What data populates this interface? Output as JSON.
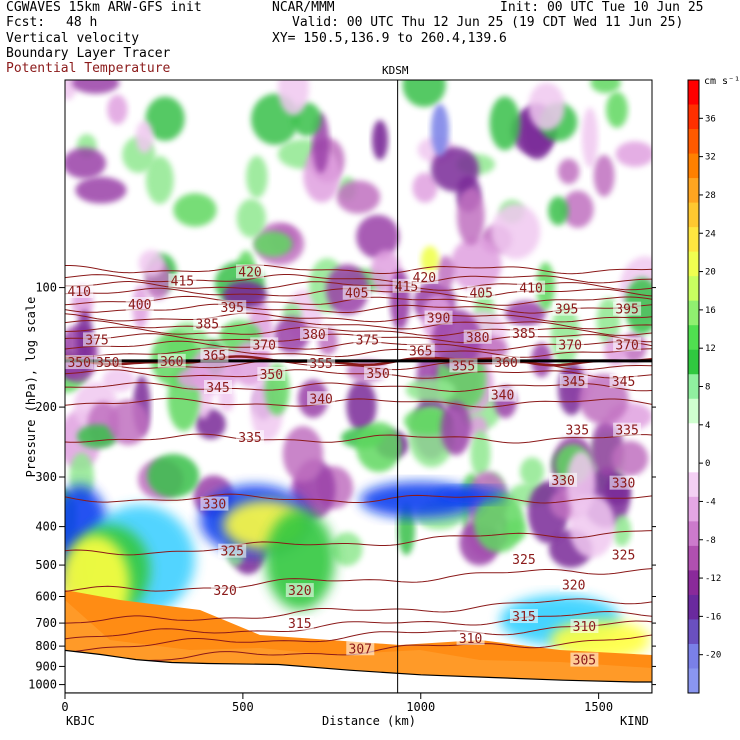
{
  "header": {
    "title_left": "CGWAVES 15km ARW-GFS init",
    "fcst_label": "Fcst:",
    "fcst_value": "48 h",
    "org": "NCAR/MMM",
    "init": "Init: 00 UTC Tue 10 Jun 25",
    "valid": "Valid: 00 UTC Thu 12 Jun 25 (19 CDT Wed 11 Jun 25)",
    "xy": "XY= 150.5,136.9 to 260.4,139.6",
    "fields": [
      "Vertical velocity",
      "Boundary Layer Tracer",
      "Potential Temperature"
    ],
    "colors": {
      "fields": [
        "#000000",
        "#000000",
        "#8b1a1a"
      ]
    }
  },
  "chart_data": {
    "type": "heatmap",
    "title": "Vertical velocity",
    "xlabel": "Distance (km)",
    "ylabel": "Pressure (hPa), log scale",
    "x_ticks": [
      0,
      500,
      1000,
      1500
    ],
    "xlim": [
      0,
      1650
    ],
    "y_ticks": [
      100,
      200,
      300,
      400,
      500,
      600,
      700,
      800,
      900,
      1000
    ],
    "ylim": [
      1050,
      30
    ],
    "y_scale": "log",
    "left_station": "KBJC",
    "right_station": "KIND",
    "mid_station": {
      "name": "KDSM",
      "distance": 935
    },
    "colorbar": {
      "unit": "cm s⁻¹",
      "labels": [
        36,
        32,
        28,
        24,
        20,
        16,
        12,
        8,
        4,
        0,
        -4,
        -8,
        -12,
        -16,
        -20
      ],
      "colors": [
        "#ff0000",
        "#ff3000",
        "#ff5a00",
        "#ff8000",
        "#ffa520",
        "#ffc830",
        "#ffe640",
        "#f0ff50",
        "#c8ff60",
        "#90f070",
        "#50e050",
        "#30c840",
        "#90f0a0",
        "#d0ffd0",
        "#ffffff",
        "#ffffff",
        "#f4d0f4",
        "#e4a6e4",
        "#cc7acc",
        "#b050b0",
        "#8a2a9a",
        "#6a2a9e",
        "#6a50c0",
        "#7a80e8",
        "#8a96f0"
      ]
    },
    "theta_contours": [
      {
        "value": 305,
        "unit": "K"
      },
      {
        "value": 307,
        "unit": "K"
      },
      {
        "value": 310,
        "unit": "K"
      },
      {
        "value": 315,
        "unit": "K"
      },
      {
        "value": 320,
        "unit": "K"
      },
      {
        "value": 325,
        "unit": "K"
      },
      {
        "value": 330,
        "unit": "K"
      },
      {
        "value": 335,
        "unit": "K"
      },
      {
        "value": 340,
        "unit": "K"
      },
      {
        "value": 345,
        "unit": "K"
      },
      {
        "value": 350,
        "unit": "K"
      },
      {
        "value": 355,
        "unit": "K"
      },
      {
        "value": 360,
        "unit": "K"
      },
      {
        "value": 365,
        "unit": "K"
      },
      {
        "value": 370,
        "unit": "K"
      },
      {
        "value": 375,
        "unit": "K"
      },
      {
        "value": 380,
        "unit": "K"
      },
      {
        "value": 385,
        "unit": "K"
      },
      {
        "value": 390,
        "unit": "K"
      },
      {
        "value": 395,
        "unit": "K"
      },
      {
        "value": 400,
        "unit": "K"
      },
      {
        "value": 405,
        "unit": "K"
      },
      {
        "value": 410,
        "unit": "K"
      },
      {
        "value": 415,
        "unit": "K"
      },
      {
        "value": 420,
        "unit": "K"
      }
    ],
    "contour_labels": [
      {
        "text": "410",
        "x": 40,
        "p": 102
      },
      {
        "text": "415",
        "x": 330,
        "p": 96
      },
      {
        "text": "420",
        "x": 520,
        "p": 91
      },
      {
        "text": "400",
        "x": 210,
        "p": 110
      },
      {
        "text": "395",
        "x": 470,
        "p": 112
      },
      {
        "text": "405",
        "x": 820,
        "p": 103
      },
      {
        "text": "415",
        "x": 960,
        "p": 99
      },
      {
        "text": "420",
        "x": 1010,
        "p": 94
      },
      {
        "text": "405",
        "x": 1170,
        "p": 103
      },
      {
        "text": "410",
        "x": 1310,
        "p": 100
      },
      {
        "text": "395",
        "x": 1410,
        "p": 113
      },
      {
        "text": "395",
        "x": 1580,
        "p": 113
      },
      {
        "text": "385",
        "x": 400,
        "p": 123
      },
      {
        "text": "390",
        "x": 1050,
        "p": 119
      },
      {
        "text": "380",
        "x": 700,
        "p": 131
      },
      {
        "text": "375",
        "x": 90,
        "p": 135
      },
      {
        "text": "375",
        "x": 850,
        "p": 135
      },
      {
        "text": "380",
        "x": 1160,
        "p": 133
      },
      {
        "text": "385",
        "x": 1290,
        "p": 130
      },
      {
        "text": "370",
        "x": 560,
        "p": 139
      },
      {
        "text": "370",
        "x": 1420,
        "p": 139
      },
      {
        "text": "370",
        "x": 1580,
        "p": 139
      },
      {
        "text": "365",
        "x": 420,
        "p": 148
      },
      {
        "text": "365",
        "x": 1000,
        "p": 144
      },
      {
        "text": "360",
        "x": 300,
        "p": 153
      },
      {
        "text": "355",
        "x": 720,
        "p": 155
      },
      {
        "text": "360",
        "x": 1240,
        "p": 154
      },
      {
        "text": "355",
        "x": 1120,
        "p": 157
      },
      {
        "text": "350",
        "x": 40,
        "p": 154
      },
      {
        "text": "350",
        "x": 120,
        "p": 154
      },
      {
        "text": "350",
        "x": 580,
        "p": 165
      },
      {
        "text": "350",
        "x": 880,
        "p": 164
      },
      {
        "text": "345",
        "x": 430,
        "p": 178
      },
      {
        "text": "345",
        "x": 1430,
        "p": 172
      },
      {
        "text": "345",
        "x": 1570,
        "p": 172
      },
      {
        "text": "340",
        "x": 720,
        "p": 190
      },
      {
        "text": "340",
        "x": 1230,
        "p": 186
      },
      {
        "text": "335",
        "x": 520,
        "p": 238
      },
      {
        "text": "335",
        "x": 1440,
        "p": 228
      },
      {
        "text": "335",
        "x": 1580,
        "p": 228
      },
      {
        "text": "330",
        "x": 420,
        "p": 350
      },
      {
        "text": "330",
        "x": 1400,
        "p": 305
      },
      {
        "text": "330",
        "x": 1570,
        "p": 310
      },
      {
        "text": "325",
        "x": 470,
        "p": 460
      },
      {
        "text": "325",
        "x": 1290,
        "p": 482
      },
      {
        "text": "325",
        "x": 1570,
        "p": 470
      },
      {
        "text": "320",
        "x": 450,
        "p": 578
      },
      {
        "text": "320",
        "x": 660,
        "p": 578
      },
      {
        "text": "320",
        "x": 1430,
        "p": 560
      },
      {
        "text": "315",
        "x": 660,
        "p": 700
      },
      {
        "text": "315",
        "x": 1290,
        "p": 672
      },
      {
        "text": "310",
        "x": 1140,
        "p": 763
      },
      {
        "text": "310",
        "x": 1460,
        "p": 712
      },
      {
        "text": "307",
        "x": 830,
        "p": 810
      },
      {
        "text": "305",
        "x": 1460,
        "p": 865
      }
    ],
    "series": [
      {
        "name": "Potential Temperature",
        "color": "#8b1a1a"
      },
      {
        "name": "Boundary Layer Tracer",
        "color": "#000000"
      }
    ],
    "terrain": [
      {
        "x": 0,
        "p": 820
      },
      {
        "x": 100,
        "p": 840
      },
      {
        "x": 200,
        "p": 865
      },
      {
        "x": 300,
        "p": 880
      },
      {
        "x": 400,
        "p": 885
      },
      {
        "x": 600,
        "p": 890
      },
      {
        "x": 800,
        "p": 920
      },
      {
        "x": 1000,
        "p": 945
      },
      {
        "x": 1200,
        "p": 960
      },
      {
        "x": 1400,
        "p": 975
      },
      {
        "x": 1600,
        "p": 985
      },
      {
        "x": 1650,
        "p": 985
      }
    ]
  }
}
